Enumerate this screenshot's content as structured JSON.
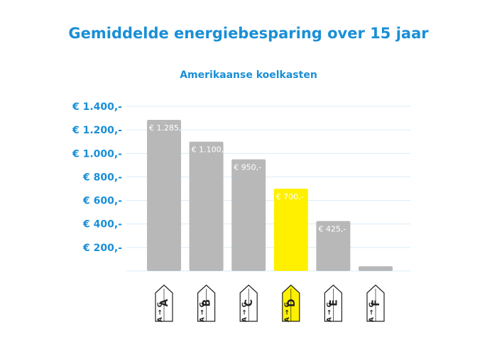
{
  "colors": {
    "accent": "#1a8fd6",
    "bar": "#b8b8b8",
    "highlight": "#fff000",
    "grid": "#d9ecf7",
    "label_text": "#ffffff"
  },
  "chart_data": {
    "type": "bar",
    "title": "Gemiddelde energiebesparing over 15 jaar",
    "subtitle": "Amerikaanse koelkasten",
    "xlabel": "",
    "ylabel": "",
    "ylim": [
      0,
      1400
    ],
    "yticks": [
      200,
      400,
      600,
      800,
      1000,
      1200,
      1400
    ],
    "ytick_labels": [
      "€ 200,-",
      "€ 400,-",
      "€ 600,-",
      "€ 800,-",
      "€ 1.000,-",
      "€ 1.200,-",
      "€ 1.400,-"
    ],
    "grid": true,
    "categories": [
      "A",
      "B",
      "C",
      "D",
      "E",
      "F"
    ],
    "values": [
      1285,
      1100,
      950,
      700,
      425,
      40
    ],
    "value_labels": [
      "€ 1.285,-",
      "€ 1.100,-",
      "€ 950,-",
      "€ 700,-",
      "€ 425,-",
      ""
    ],
    "highlight_category": "D",
    "energy_label_scale": [
      "A",
      "G"
    ]
  }
}
